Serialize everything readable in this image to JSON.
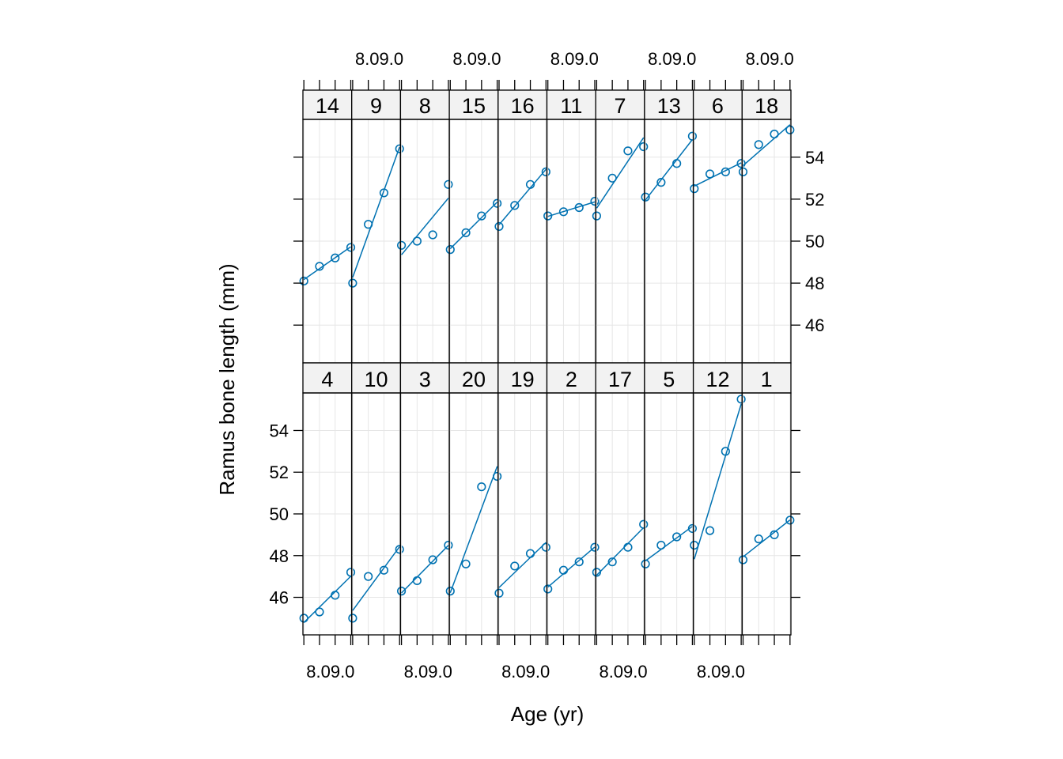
{
  "chart_data": {
    "type": "line",
    "xlabel": "Age (yr)",
    "ylabel": "Ramus bone length (mm)",
    "ylim": [
      44.2,
      55.8
    ],
    "yticks": [
      46,
      48,
      50,
      52,
      54
    ],
    "x_tick_label": "8.09.0",
    "x": [
      8.0,
      8.5,
      9.0,
      9.5
    ],
    "xlim": [
      7.97,
      9.53
    ],
    "grid": true,
    "colors": {
      "series": "#0072B2",
      "strip": "#F2F2F2",
      "grid": "#E6E6E6"
    },
    "rows": [
      {
        "panels": [
          {
            "name": "14",
            "values": [
              48.1,
              48.8,
              49.2,
              49.7
            ]
          },
          {
            "name": "9",
            "values": [
              48.0,
              50.8,
              52.3,
              54.4
            ]
          },
          {
            "name": "8",
            "values": [
              49.8,
              50.0,
              50.3,
              52.7
            ]
          },
          {
            "name": "15",
            "values": [
              49.6,
              50.4,
              51.2,
              51.8
            ]
          },
          {
            "name": "16",
            "values": [
              50.7,
              51.7,
              52.7,
              53.3
            ]
          },
          {
            "name": "11",
            "values": [
              51.2,
              51.4,
              51.6,
              51.9
            ]
          },
          {
            "name": "7",
            "values": [
              51.2,
              53.0,
              54.3,
              54.5
            ]
          },
          {
            "name": "13",
            "values": [
              52.1,
              52.8,
              53.7,
              55.0
            ]
          },
          {
            "name": "6",
            "values": [
              52.5,
              53.2,
              53.3,
              53.7
            ]
          },
          {
            "name": "18",
            "values": [
              53.3,
              54.6,
              55.1,
              55.3
            ]
          }
        ]
      },
      {
        "panels": [
          {
            "name": "4",
            "values": [
              45.0,
              45.3,
              46.1,
              47.2
            ]
          },
          {
            "name": "10",
            "values": [
              45.0,
              47.0,
              47.3,
              48.3
            ]
          },
          {
            "name": "3",
            "values": [
              46.3,
              46.8,
              47.8,
              48.5
            ]
          },
          {
            "name": "20",
            "values": [
              46.3,
              47.6,
              51.3,
              51.8
            ]
          },
          {
            "name": "19",
            "values": [
              46.2,
              47.5,
              48.1,
              48.4
            ]
          },
          {
            "name": "2",
            "values": [
              46.4,
              47.3,
              47.7,
              48.4
            ]
          },
          {
            "name": "17",
            "values": [
              47.2,
              47.7,
              48.4,
              49.5
            ]
          },
          {
            "name": "5",
            "values": [
              47.6,
              48.5,
              48.9,
              49.3
            ]
          },
          {
            "name": "12",
            "values": [
              48.5,
              49.2,
              53.0,
              55.5
            ]
          },
          {
            "name": "1",
            "values": [
              47.8,
              48.8,
              49.0,
              49.7
            ]
          }
        ]
      }
    ]
  }
}
